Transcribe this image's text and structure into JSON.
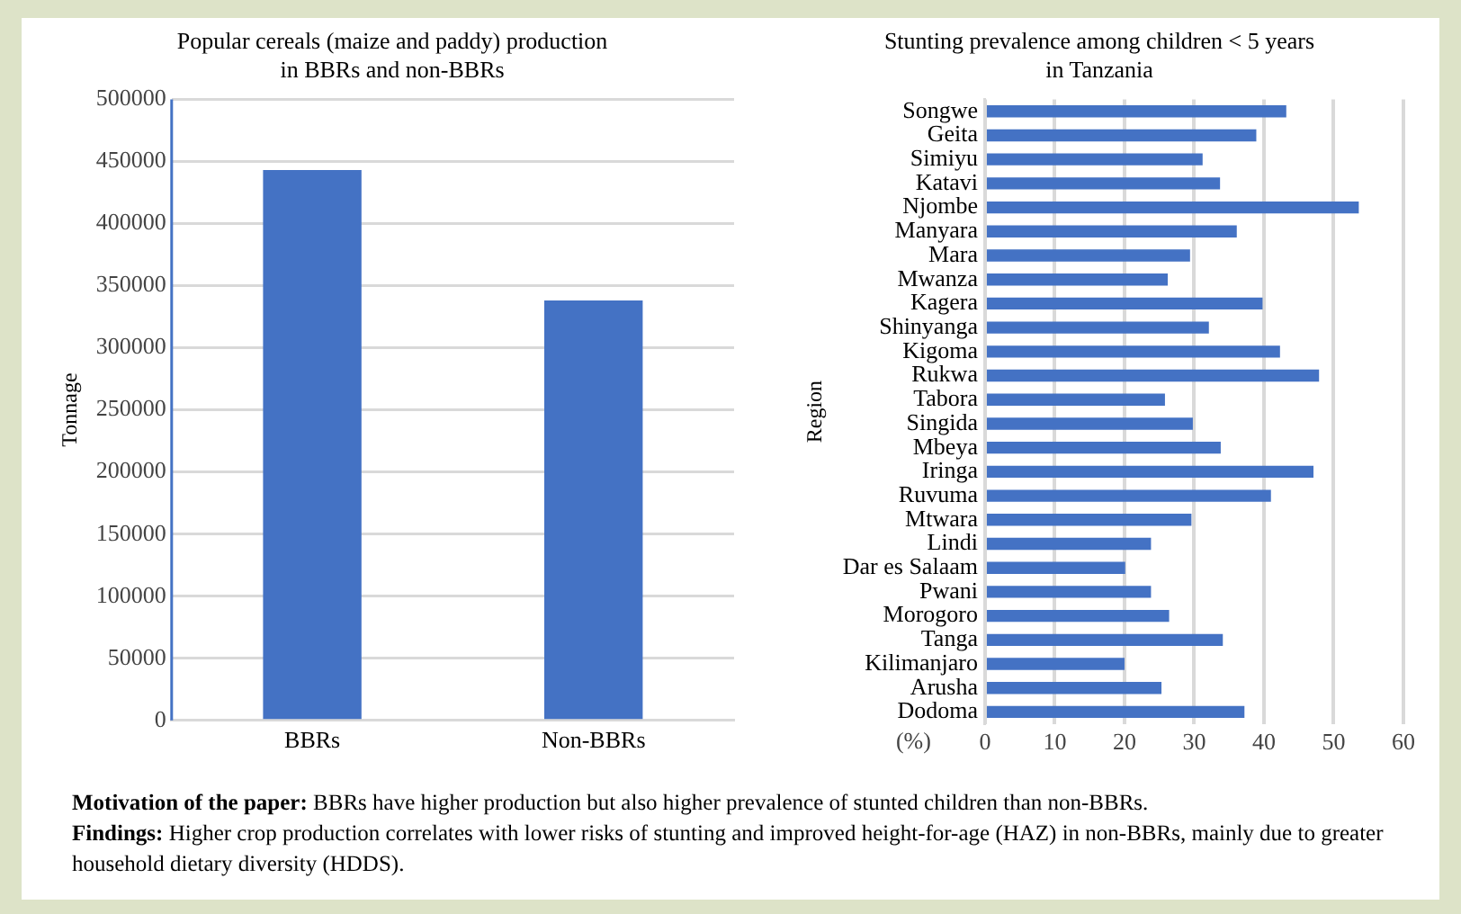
{
  "chart_data": [
    {
      "type": "bar",
      "title": "Popular cereals (maize and paddy) production\nin BBRs and non-BBRs",
      "ylabel": "Tonnage",
      "categories": [
        "BBRs",
        "Non-BBRs"
      ],
      "values": [
        443000,
        338000
      ],
      "color": "#4472c4",
      "ylim": [
        0,
        500000
      ],
      "yticks": [
        0,
        50000,
        100000,
        150000,
        200000,
        250000,
        300000,
        350000,
        400000,
        450000,
        500000
      ],
      "grid": "y"
    },
    {
      "type": "bar",
      "orientation": "horizontal",
      "title": "Stunting prevalence among children < 5 years\nin Tanzania",
      "xlabel": "(%)",
      "ylabel": "Region",
      "categories": [
        "Songwe",
        "Geita",
        "Simiyu",
        "Katavi",
        "Njombe",
        "Manyara",
        "Mara",
        "Mwanza",
        "Kagera",
        "Shinyanga",
        "Kigoma",
        "Rukwa",
        "Tabora",
        "Singida",
        "Mbeya",
        "Iringa",
        "Ruvuma",
        "Mtwara",
        "Lindi",
        "Dar es Salaam",
        "Pwani",
        "Morogoro",
        "Tanga",
        "Kilimanjaro",
        "Arusha",
        "Dodoma"
      ],
      "values": [
        43.2,
        38.9,
        31.2,
        33.7,
        53.6,
        36.1,
        29.4,
        26.2,
        39.8,
        32.1,
        42.3,
        47.9,
        25.8,
        29.8,
        33.8,
        47.1,
        41.0,
        29.6,
        23.8,
        20.1,
        23.8,
        26.4,
        34.1,
        20.0,
        25.3,
        37.2
      ],
      "color": "#4472c4",
      "xlim": [
        0,
        60
      ],
      "xticks": [
        0,
        10,
        20,
        30,
        40,
        50,
        60
      ],
      "grid": "x",
      "annotations": [
        "Motivation of the paper: BBRs have higher production but also higher prevalence of stunted children than non-BBRs.",
        "Findings: Higher crop production correlates with lower risks of stunting and improved height-for-age (HAZ) in non-BBRs, mainly due to greater household dietary diversity (HDDS)."
      ]
    }
  ]
}
